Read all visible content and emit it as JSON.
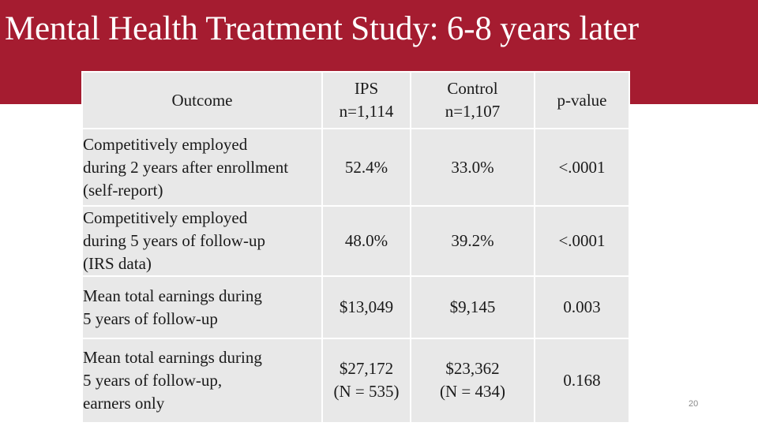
{
  "slide": {
    "title": "Mental Health Treatment Study: 6-8 years later",
    "page_number": "20",
    "accent_color": "#a51c30"
  },
  "table": {
    "headers": {
      "outcome": "Outcome",
      "ips": {
        "name": "IPS",
        "n": "n=1,114"
      },
      "control": {
        "name": "Control",
        "n": "n=1,107"
      },
      "p_value": "p-value"
    },
    "rows": [
      {
        "outcome_lines": [
          "Competitively employed",
          "during 2 years after enrollment",
          "(self-report)"
        ],
        "ips": [
          "52.4%"
        ],
        "control": [
          "33.0%"
        ],
        "p_value": "<.0001"
      },
      {
        "outcome_lines": [
          "Competitively employed",
          "during 5 years of follow-up",
          "(IRS data)"
        ],
        "ips": [
          "48.0%"
        ],
        "control": [
          "39.2%"
        ],
        "p_value": "<.0001"
      },
      {
        "outcome_lines": [
          "Mean total earnings during",
          "5 years of  follow-up"
        ],
        "ips": [
          "$13,049"
        ],
        "control": [
          "$9,145"
        ],
        "p_value": "0.003"
      },
      {
        "outcome_lines": [
          "Mean total earnings during",
          "5 years of follow-up,",
          "earners only"
        ],
        "ips": [
          "$27,172",
          "(N = 535)"
        ],
        "control": [
          "$23,362",
          "(N = 434)"
        ],
        "p_value": "0.168"
      }
    ]
  }
}
